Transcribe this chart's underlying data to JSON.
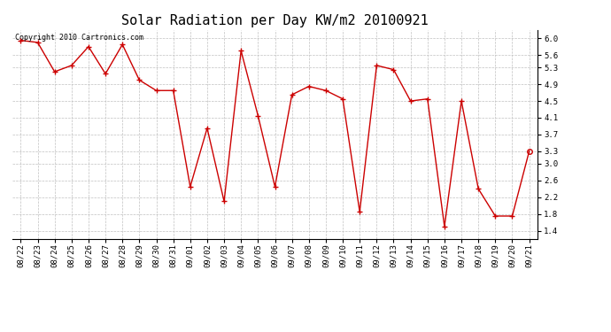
{
  "title": "Solar Radiation per Day KW/m2 20100921",
  "copyright_text": "Copyright 2010 Cartronics.com",
  "dates": [
    "08/22",
    "08/23",
    "08/24",
    "08/25",
    "08/26",
    "08/27",
    "08/28",
    "08/29",
    "08/30",
    "08/31",
    "09/01",
    "09/02",
    "09/03",
    "09/04",
    "09/05",
    "09/06",
    "09/07",
    "09/08",
    "09/09",
    "09/10",
    "09/11",
    "09/12",
    "09/13",
    "09/14",
    "09/15",
    "09/16",
    "09/17",
    "09/18",
    "09/19",
    "09/20",
    "09/21"
  ],
  "values": [
    5.95,
    5.9,
    5.2,
    5.35,
    5.8,
    5.15,
    5.85,
    5.0,
    4.75,
    4.75,
    2.45,
    3.85,
    2.1,
    5.7,
    4.15,
    2.45,
    4.65,
    4.85,
    4.75,
    4.55,
    1.85,
    5.35,
    5.25,
    4.5,
    4.55,
    1.5,
    4.5,
    2.4,
    1.75,
    1.75,
    3.3
  ],
  "line_color": "#cc0000",
  "marker_color": "#cc0000",
  "background_color": "#ffffff",
  "grid_color": "#c0c0c0",
  "ylim": [
    1.2,
    6.2
  ],
  "yticks": [
    1.4,
    1.8,
    2.2,
    2.6,
    3.0,
    3.3,
    3.7,
    4.1,
    4.5,
    4.9,
    5.3,
    5.6,
    6.0
  ],
  "title_fontsize": 11,
  "tick_fontsize": 6.5,
  "copyright_fontsize": 6
}
